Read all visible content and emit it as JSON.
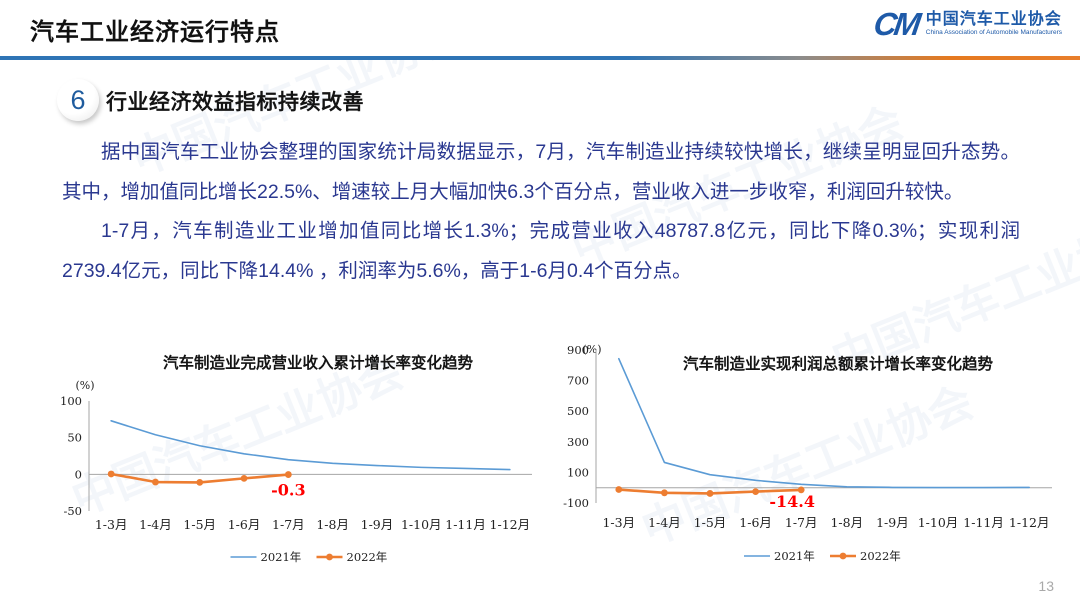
{
  "header": {
    "title": "汽车工业经济运行特点",
    "logo": {
      "mark": "CM",
      "name_cn": "中国汽车工业协会",
      "name_en": "China Association of Automobile Manufacturers"
    }
  },
  "section": {
    "badge": "6",
    "heading": "行业经济效益指标持续改善"
  },
  "body": {
    "paragraph_1": "据中国汽车工业协会整理的国家统计局数据显示，7月，汽车制造业持续较快增长，继续呈明显回升态势。其中，增加值同比增长22.5%、增速较上月大幅加快6.3个百分点，营业收入进一步收窄，利润回升较快。",
    "paragraph_2": "1-7月，汽车制造业工业增加值同比增长1.3%；完成营业收入48787.8亿元，同比下降0.3%；实现利润2739.4亿元，同比下降14.4% ，利润率为5.6%，高于1-6月0.4个百分点。"
  },
  "footer": {
    "page_number": "13"
  },
  "watermark_text": "中国汽车工业协会",
  "colors": {
    "accent_blue": "#2E74B5",
    "accent_orange": "#E87E2B",
    "series_2021": "#5B9BD5",
    "series_2022": "#ED7D31",
    "annotation_red": "#FF0000",
    "body_text_blue": "#2A3890"
  },
  "chart_data": [
    {
      "type": "line",
      "title": "汽车制造业完成营业收入累计增长率变化趋势",
      "unit_label": "(%)",
      "categories": [
        "1-3月",
        "1-4月",
        "1-5月",
        "1-6月",
        "1-7月",
        "1-8月",
        "1-9月",
        "1-10月",
        "1-11月",
        "1-12月"
      ],
      "ylim": [
        -50,
        100
      ],
      "yticks": [
        100,
        50,
        0,
        -50
      ],
      "legend_position": "bottom",
      "series": [
        {
          "name": "2021年",
          "color": "#5B9BD5",
          "marker": false,
          "values": [
            73,
            54,
            39,
            28,
            20,
            15,
            12,
            9.5,
            8,
            6.5
          ]
        },
        {
          "name": "2022年",
          "color": "#ED7D31",
          "marker": true,
          "values": [
            0.5,
            -10.5,
            -11,
            -5.5,
            -0.3
          ]
        }
      ],
      "annotation": {
        "text": "-0.3",
        "series_index": 1,
        "point_index": 4,
        "color": "#FF0000"
      }
    },
    {
      "type": "line",
      "title": "汽车制造业实现利润总额累计增长率变化趋势",
      "unit_label": "(%)",
      "categories": [
        "1-3月",
        "1-4月",
        "1-5月",
        "1-6月",
        "1-7月",
        "1-8月",
        "1-9月",
        "1-10月",
        "1-11月",
        "1-12月"
      ],
      "ylim": [
        -100,
        900
      ],
      "yticks": [
        900,
        700,
        500,
        300,
        100,
        -100
      ],
      "legend_position": "bottom",
      "series": [
        {
          "name": "2021年",
          "color": "#5B9BD5",
          "marker": false,
          "values": [
            843,
            165,
            85,
            48,
            22,
            6,
            2,
            1,
            1,
            2
          ]
        },
        {
          "name": "2022年",
          "color": "#ED7D31",
          "marker": true,
          "values": [
            -11.9,
            -33.4,
            -37.5,
            -25.5,
            -14.4
          ]
        }
      ],
      "annotation": {
        "text": "-14.4",
        "series_index": 1,
        "point_index": 4,
        "color": "#FF0000"
      }
    }
  ]
}
